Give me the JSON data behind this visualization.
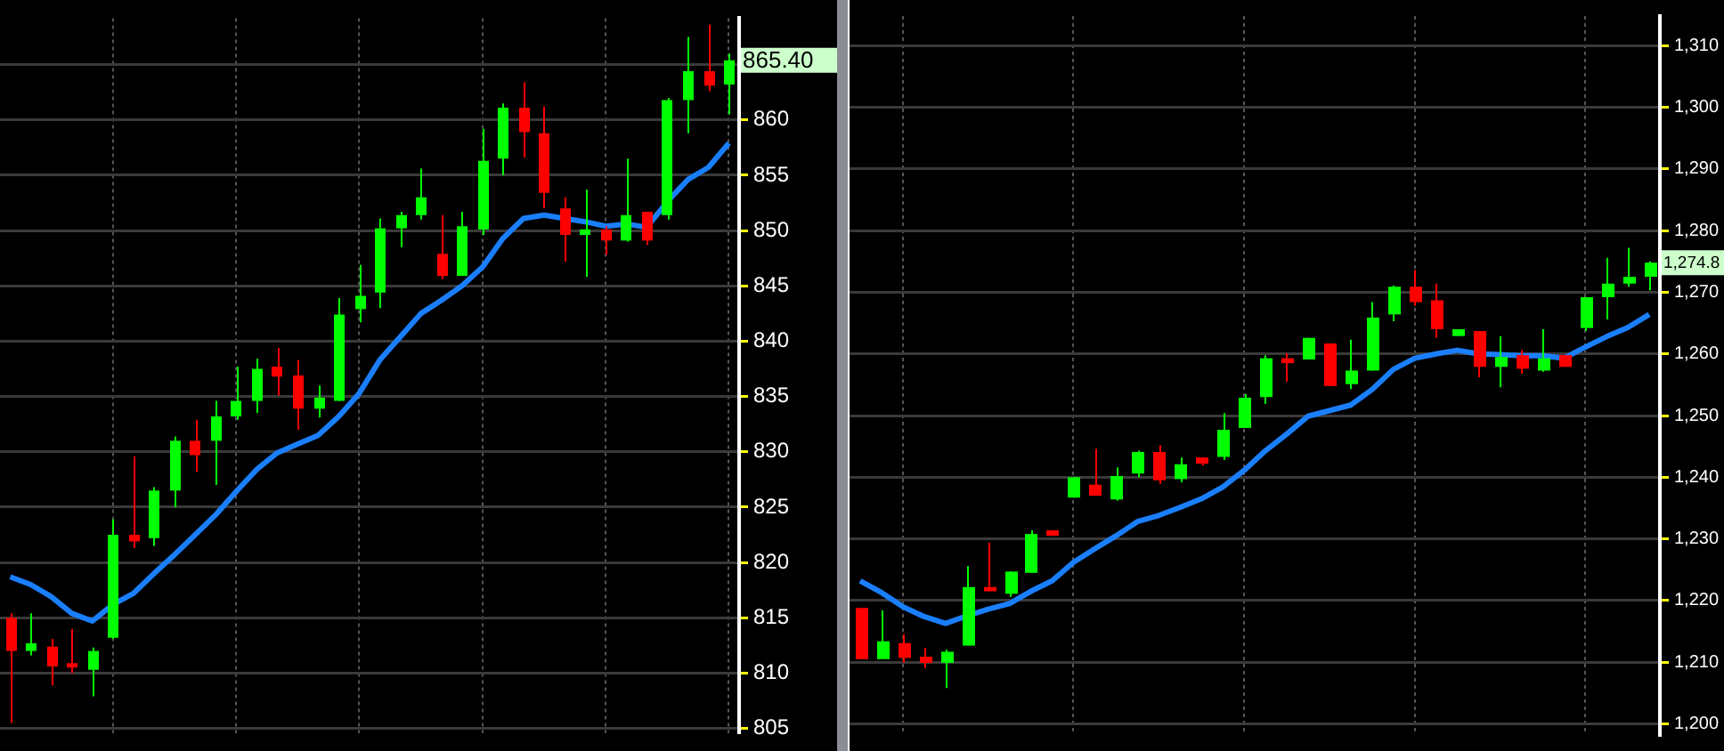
{
  "chart_data": [
    {
      "type": "candlestick",
      "categories": [
        null,
        null,
        null,
        null,
        null,
        null,
        null,
        null,
        null,
        null,
        null,
        null,
        null,
        null,
        null,
        null,
        null,
        null,
        null,
        null,
        null,
        null,
        null,
        null,
        null,
        null,
        null,
        null,
        null,
        null,
        null,
        null,
        null,
        null,
        null,
        null
      ],
      "ohlc": [
        [
          815.0,
          815.4,
          805.5,
          812.0
        ],
        [
          812.0,
          815.4,
          811.6,
          812.7
        ],
        [
          812.4,
          813.1,
          808.9,
          810.6
        ],
        [
          810.9,
          814.0,
          810.0,
          810.5
        ],
        [
          810.3,
          812.3,
          807.9,
          812.0
        ],
        [
          813.2,
          823.9,
          813.1,
          822.5
        ],
        [
          822.5,
          829.6,
          821.3,
          821.9
        ],
        [
          822.2,
          826.8,
          821.5,
          826.5
        ],
        [
          826.5,
          831.4,
          825.0,
          831.0
        ],
        [
          831.0,
          832.9,
          828.2,
          829.7
        ],
        [
          831.0,
          834.6,
          827.0,
          833.2
        ],
        [
          833.2,
          837.7,
          832.9,
          834.6
        ],
        [
          834.6,
          838.4,
          833.5,
          837.5
        ],
        [
          837.7,
          839.4,
          835.1,
          836.8
        ],
        [
          836.9,
          838.3,
          832.0,
          833.9
        ],
        [
          833.9,
          836.0,
          833.1,
          834.9
        ],
        [
          834.6,
          843.9,
          834.6,
          842.4
        ],
        [
          842.9,
          846.9,
          841.7,
          844.1
        ],
        [
          844.4,
          851.1,
          843.0,
          850.2
        ],
        [
          850.2,
          851.7,
          848.5,
          851.4
        ],
        [
          851.4,
          855.6,
          851.0,
          853.0
        ],
        [
          847.9,
          851.4,
          845.6,
          845.9
        ],
        [
          845.9,
          851.7,
          845.9,
          850.4
        ],
        [
          850.1,
          859.2,
          849.6,
          856.3
        ],
        [
          856.5,
          861.5,
          855.0,
          861.1
        ],
        [
          861.1,
          863.4,
          856.6,
          858.9
        ],
        [
          858.8,
          861.2,
          852.0,
          853.4
        ],
        [
          852.0,
          853.0,
          847.2,
          849.6
        ],
        [
          849.6,
          853.7,
          845.8,
          850.1
        ],
        [
          850.1,
          850.4,
          847.8,
          849.1
        ],
        [
          849.1,
          856.5,
          849.0,
          851.4
        ],
        [
          851.7,
          851.7,
          848.7,
          849.1
        ],
        [
          851.4,
          862.0,
          851.0,
          861.8
        ],
        [
          861.8,
          867.5,
          858.8,
          864.4
        ],
        [
          864.4,
          868.6,
          862.6,
          863.1
        ],
        [
          863.2,
          866.0,
          860.5,
          865.4
        ]
      ],
      "series": [
        {
          "type": "line",
          "color": "#1a7fff",
          "values": [
            818.7,
            818.0,
            816.9,
            815.4,
            814.7,
            816.2,
            817.2,
            819.0,
            820.7,
            822.5,
            824.3,
            826.4,
            828.4,
            829.9,
            830.7,
            831.5,
            833.2,
            835.3,
            838.3,
            840.4,
            842.5,
            843.7,
            845.0,
            846.7,
            849.3,
            851.1,
            851.4,
            851.1,
            850.8,
            850.4,
            850.6,
            850.3,
            852.6,
            854.6,
            855.7,
            857.9
          ]
        }
      ],
      "ylim": [
        804.6,
        869.2
      ],
      "yticks": [
        805,
        810,
        815,
        820,
        825,
        830,
        835,
        840,
        845,
        850,
        855,
        860,
        {
          "value": 865,
          "label": null
        }
      ],
      "grid": true,
      "tick_labels": "y",
      "annotations": [
        "865.40"
      ]
    },
    {
      "type": "candlestick",
      "categories": [
        null,
        null,
        null,
        null,
        null,
        null,
        null,
        null,
        null,
        null,
        null,
        null,
        null,
        null,
        null,
        null,
        null,
        null,
        null,
        null,
        null,
        null,
        null,
        null,
        null,
        null,
        null,
        null,
        null,
        null,
        null,
        null,
        null,
        null,
        null,
        null,
        null,
        null
      ],
      "ohlc": [
        [
          1218.8,
          1218.8,
          1210.5,
          1210.5
        ],
        [
          1210.5,
          1218.4,
          1210.5,
          1213.4
        ],
        [
          1213.1,
          1214.5,
          1209.9,
          1210.7
        ],
        [
          1210.9,
          1212.3,
          1209.1,
          1209.9
        ],
        [
          1209.9,
          1212.0,
          1205.8,
          1211.7
        ],
        [
          1212.7,
          1225.6,
          1212.7,
          1222.2
        ],
        [
          1222.2,
          1229.4,
          1221.5,
          1221.5
        ],
        [
          1221.1,
          1224.7,
          1220.6,
          1224.7
        ],
        [
          1224.5,
          1231.4,
          1224.5,
          1230.8
        ],
        [
          1231.4,
          1231.4,
          1230.5,
          1230.5
        ],
        [
          1236.7,
          1240.0,
          1236.7,
          1240.0
        ],
        [
          1238.8,
          1244.6,
          1237.0,
          1237.0
        ],
        [
          1236.4,
          1241.6,
          1236.2,
          1240.2
        ],
        [
          1240.6,
          1244.3,
          1240.0,
          1244.1
        ],
        [
          1244.1,
          1245.2,
          1238.9,
          1239.5
        ],
        [
          1239.7,
          1243.2,
          1239.2,
          1242.1
        ],
        [
          1243.2,
          1243.2,
          1241.9,
          1242.2
        ],
        [
          1243.3,
          1250.4,
          1242.8,
          1247.7
        ],
        [
          1248.0,
          1253.5,
          1248.0,
          1252.9
        ],
        [
          1253.0,
          1259.8,
          1251.9,
          1259.3
        ],
        [
          1259.3,
          1260.1,
          1255.5,
          1258.5
        ],
        [
          1259.1,
          1262.6,
          1259.1,
          1262.6
        ],
        [
          1261.7,
          1261.7,
          1254.8,
          1254.8
        ],
        [
          1255.1,
          1262.3,
          1254.3,
          1257.3
        ],
        [
          1257.3,
          1268.4,
          1257.3,
          1265.9
        ],
        [
          1266.4,
          1271.1,
          1265.3,
          1270.9
        ],
        [
          1270.9,
          1273.6,
          1267.8,
          1268.4
        ],
        [
          1268.7,
          1271.4,
          1262.6,
          1264.0
        ],
        [
          1262.9,
          1264.0,
          1262.9,
          1264.0
        ],
        [
          1263.7,
          1263.7,
          1256.2,
          1257.9
        ],
        [
          1257.9,
          1262.9,
          1254.6,
          1259.5
        ],
        [
          1259.8,
          1260.6,
          1256.8,
          1257.6
        ],
        [
          1257.3,
          1264.0,
          1257.1,
          1259.3
        ],
        [
          1259.8,
          1259.8,
          1257.9,
          1257.9
        ],
        [
          1264.2,
          1269.2,
          1263.7,
          1269.2
        ],
        [
          1269.2,
          1275.6,
          1265.6,
          1271.4
        ],
        [
          1271.4,
          1277.2,
          1270.9,
          1272.5
        ],
        [
          1272.5,
          1275.0,
          1270.3,
          1274.8
        ]
      ],
      "series": [
        {
          "type": "line",
          "color": "#1a7fff",
          "values": [
            1223.2,
            1221.3,
            1219.0,
            1217.4,
            1216.3,
            1217.5,
            1218.6,
            1219.5,
            1221.5,
            1223.2,
            1226.2,
            1228.4,
            1230.5,
            1232.8,
            1233.8,
            1235.1,
            1236.5,
            1238.4,
            1241.1,
            1244.3,
            1247.0,
            1249.9,
            1250.8,
            1251.7,
            1254.2,
            1257.5,
            1259.3,
            1260.0,
            1260.6,
            1260.0,
            1259.9,
            1259.7,
            1259.7,
            1259.3,
            1261.1,
            1262.8,
            1264.3,
            1266.4
          ]
        }
      ],
      "ylim": [
        1198.2,
        1314.8
      ],
      "yticks": [
        {
          "value": 1200,
          "label": "1,200"
        },
        {
          "value": 1210,
          "label": "1,210"
        },
        {
          "value": 1220,
          "label": "1,220"
        },
        {
          "value": 1230,
          "label": "1,230"
        },
        {
          "value": 1240,
          "label": "1,240"
        },
        {
          "value": 1250,
          "label": "1,250"
        },
        {
          "value": 1260,
          "label": "1,260"
        },
        {
          "value": 1270,
          "label": "1,270"
        },
        {
          "value": 1280,
          "label": "1,280"
        },
        {
          "value": 1290,
          "label": "1,290"
        },
        {
          "value": 1300,
          "label": "1,300"
        },
        {
          "value": 1310,
          "label": "1,310"
        }
      ],
      "grid": true,
      "tick_labels": "y",
      "annotations": [
        "1,274.8"
      ]
    }
  ]
}
